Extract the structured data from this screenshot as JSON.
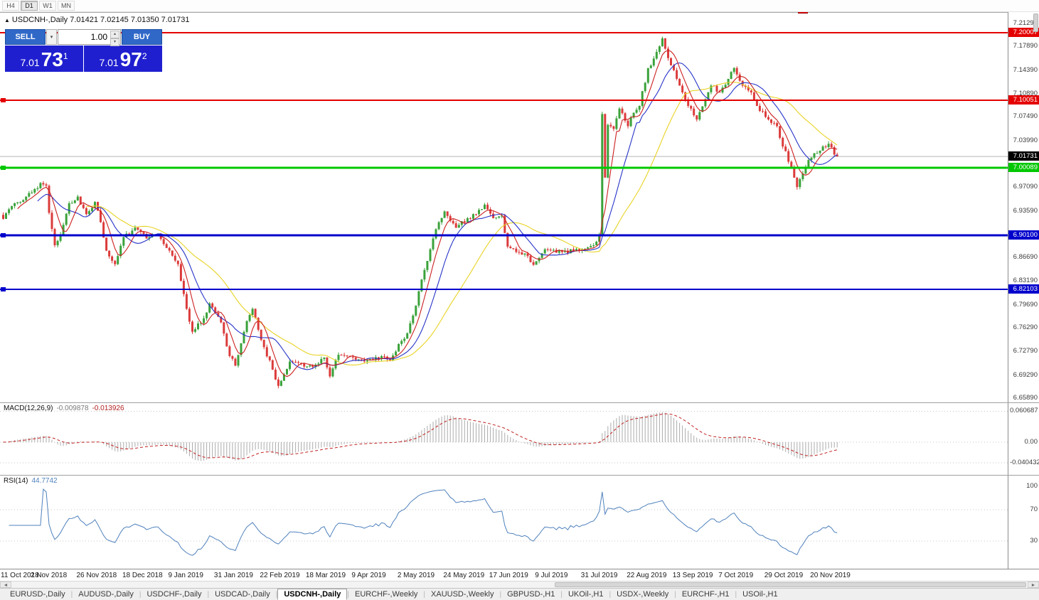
{
  "toolbar": {
    "timeframes": [
      {
        "label": "H4",
        "active": false
      },
      {
        "label": "D1",
        "active": true
      },
      {
        "label": "W1",
        "active": false
      },
      {
        "label": "MN",
        "active": false
      }
    ]
  },
  "icons": {
    "collapse": "▲",
    "chevron_down": "▾",
    "spinner_up": "▴",
    "spinner_down": "▾",
    "scroll_left": "◄",
    "scroll_right": "►"
  },
  "trade_panel": {
    "sell_label": "SELL",
    "buy_label": "BUY",
    "volume": "1.00",
    "sell_price": {
      "small": "7.01",
      "big": "73",
      "sup": "1"
    },
    "buy_price": {
      "small": "7.01",
      "big": "97",
      "sup": "2"
    }
  },
  "chart_data": {
    "type": "candlestick",
    "title": "USDCNH-,Daily",
    "ohlc_label": "7.01421 7.02145 7.01350 7.01731",
    "ohlc_current": {
      "open": 7.01421,
      "high": 7.02145,
      "low": 7.0135,
      "close": 7.01731
    },
    "current_bid": 7.01731,
    "bars_visible": 292,
    "y_range": [
      6.6589,
      7.2129
    ],
    "y_ticks": [
      "7.21290",
      "7.17890",
      "7.14390",
      "7.10890",
      "7.07490",
      "7.03990",
      "6.97090",
      "6.93590",
      "6.86690",
      "6.83190",
      "6.79690",
      "6.76290",
      "6.72790",
      "6.69290",
      "6.65890"
    ],
    "x_labels": [
      {
        "i": 1,
        "text": "11 Oct 2018"
      },
      {
        "i": 17,
        "text": "2 Nov 2018"
      },
      {
        "i": 33,
        "text": "26 Nov 2018"
      },
      {
        "i": 49,
        "text": "18 Dec 2018"
      },
      {
        "i": 65,
        "text": "9 Jan 2019"
      },
      {
        "i": 81,
        "text": "31 Jan 2019"
      },
      {
        "i": 97,
        "text": "22 Feb 2019"
      },
      {
        "i": 113,
        "text": "18 Mar 2019"
      },
      {
        "i": 129,
        "text": "9 Apr 2019"
      },
      {
        "i": 145,
        "text": "2 May 2019"
      },
      {
        "i": 161,
        "text": "24 May 2019"
      },
      {
        "i": 177,
        "text": "17 Jun 2019"
      },
      {
        "i": 193,
        "text": "9 Jul 2019"
      },
      {
        "i": 209,
        "text": "31 Jul 2019"
      },
      {
        "i": 225,
        "text": "22 Aug 2019"
      },
      {
        "i": 241,
        "text": "13 Sep 2019"
      },
      {
        "i": 257,
        "text": "7 Oct 2019"
      },
      {
        "i": 273,
        "text": "29 Oct 2019"
      },
      {
        "i": 289,
        "text": "20 Nov 2019"
      }
    ],
    "price_anchors": [
      [
        0,
        6.925
      ],
      [
        3,
        6.944
      ],
      [
        6,
        6.95
      ],
      [
        10,
        6.964
      ],
      [
        13,
        6.978
      ],
      [
        15,
        6.974
      ],
      [
        16,
        6.934
      ],
      [
        18,
        6.886
      ],
      [
        20,
        6.902
      ],
      [
        23,
        6.948
      ],
      [
        26,
        6.958
      ],
      [
        29,
        6.932
      ],
      [
        32,
        6.95
      ],
      [
        34,
        6.92
      ],
      [
        36,
        6.878
      ],
      [
        39,
        6.858
      ],
      [
        42,
        6.898
      ],
      [
        46,
        6.912
      ],
      [
        50,
        6.896
      ],
      [
        54,
        6.902
      ],
      [
        57,
        6.882
      ],
      [
        61,
        6.858
      ],
      [
        64,
        6.792
      ],
      [
        66,
        6.758
      ],
      [
        70,
        6.778
      ],
      [
        72,
        6.8
      ],
      [
        76,
        6.772
      ],
      [
        79,
        6.722
      ],
      [
        81,
        6.708
      ],
      [
        85,
        6.774
      ],
      [
        87,
        6.792
      ],
      [
        90,
        6.746
      ],
      [
        94,
        6.702
      ],
      [
        96,
        6.678
      ],
      [
        100,
        6.714
      ],
      [
        103,
        6.712
      ],
      [
        108,
        6.706
      ],
      [
        112,
        6.72
      ],
      [
        114,
        6.692
      ],
      [
        117,
        6.724
      ],
      [
        122,
        6.72
      ],
      [
        127,
        6.716
      ],
      [
        132,
        6.722
      ],
      [
        135,
        6.716
      ],
      [
        138,
        6.74
      ],
      [
        141,
        6.756
      ],
      [
        143,
        6.782
      ],
      [
        145,
        6.818
      ],
      [
        149,
        6.88
      ],
      [
        152,
        6.92
      ],
      [
        154,
        6.936
      ],
      [
        158,
        6.912
      ],
      [
        162,
        6.926
      ],
      [
        165,
        6.932
      ],
      [
        168,
        6.946
      ],
      [
        171,
        6.926
      ],
      [
        174,
        6.93
      ],
      [
        176,
        6.884
      ],
      [
        179,
        6.876
      ],
      [
        183,
        6.87
      ],
      [
        185,
        6.857
      ],
      [
        189,
        6.88
      ],
      [
        195,
        6.876
      ],
      [
        201,
        6.878
      ],
      [
        206,
        6.886
      ],
      [
        208,
        6.902
      ],
      [
        209,
        7.08
      ],
      [
        210,
        6.986
      ],
      [
        211,
        7.064
      ],
      [
        213,
        7.058
      ],
      [
        215,
        7.088
      ],
      [
        218,
        7.062
      ],
      [
        220,
        7.082
      ],
      [
        222,
        7.092
      ],
      [
        225,
        7.148
      ],
      [
        227,
        7.162
      ],
      [
        230,
        7.192
      ],
      [
        233,
        7.152
      ],
      [
        236,
        7.122
      ],
      [
        239,
        7.092
      ],
      [
        242,
        7.072
      ],
      [
        245,
        7.102
      ],
      [
        247,
        7.122
      ],
      [
        250,
        7.112
      ],
      [
        253,
        7.132
      ],
      [
        255,
        7.148
      ],
      [
        258,
        7.122
      ],
      [
        261,
        7.112
      ],
      [
        263,
        7.092
      ],
      [
        267,
        7.072
      ],
      [
        270,
        7.062
      ],
      [
        272,
        7.032
      ],
      [
        275,
        7.002
      ],
      [
        277,
        6.972
      ],
      [
        279,
        6.992
      ],
      [
        281,
        7.012
      ],
      [
        283,
        7.022
      ],
      [
        286,
        7.032
      ],
      [
        288,
        7.036
      ],
      [
        290,
        7.02
      ],
      [
        291,
        7.01731
      ]
    ],
    "levels": [
      {
        "price": 7.20007,
        "color": "#e40000",
        "width": 2,
        "handle": false
      },
      {
        "price": 7.10051,
        "color": "#e40000",
        "width": 2,
        "handle": true
      },
      {
        "price": 7.00089,
        "color": "#00c800",
        "width": 3,
        "handle": true
      },
      {
        "price": 6.901,
        "color": "#0000cc",
        "width": 3,
        "handle": true
      },
      {
        "price": 6.82103,
        "color": "#0000cc",
        "width": 2,
        "handle": true
      }
    ],
    "bid_line": {
      "price": 7.01731,
      "color": "#b4b4b4",
      "label_bg": "#000000"
    },
    "moving_averages": [
      {
        "period": 30,
        "color": "#e8d325"
      },
      {
        "period": 13,
        "color": "#2633c8"
      },
      {
        "period": 6,
        "color": "#cc2020"
      }
    ],
    "candle_colors": {
      "up": "#3aa23a",
      "down": "#dc3b3b"
    },
    "indicators": [
      {
        "name": "MACD",
        "params": "12,26,9",
        "main": -0.009878,
        "signal": -0.013926,
        "scale_ticks": [
          0.060687,
          0.0,
          -0.040432
        ]
      },
      {
        "name": "RSI",
        "params": "14",
        "value": 44.7742,
        "scale_ticks": [
          100,
          70,
          30
        ],
        "levels": [
          70,
          30
        ]
      }
    ]
  },
  "macd_panel": {
    "label": "MACD(12,26,9)",
    "value_main": "-0.009878",
    "value_signal": "-0.013926",
    "scale": [
      "0.060687",
      "0.00",
      "-0.040432"
    ]
  },
  "rsi_panel": {
    "label": "RSI(14)",
    "value": "44.7742",
    "scale": [
      "100",
      "70",
      "30"
    ],
    "levels": [
      70,
      30
    ]
  },
  "tabs": {
    "active_index": 4,
    "list": [
      "EURUSD-,Daily",
      "AUDUSD-,Daily",
      "USDCHF-,Daily",
      "USDCAD-,Daily",
      "USDCNH-,Daily",
      "EURCHF-,Weekly",
      "XAUUSD-,Weekly",
      "GBPUSD-,H1",
      "UKOil-,H1",
      "USDX-,Weekly",
      "EURCHF-,H1",
      "USOil-,H1"
    ]
  }
}
